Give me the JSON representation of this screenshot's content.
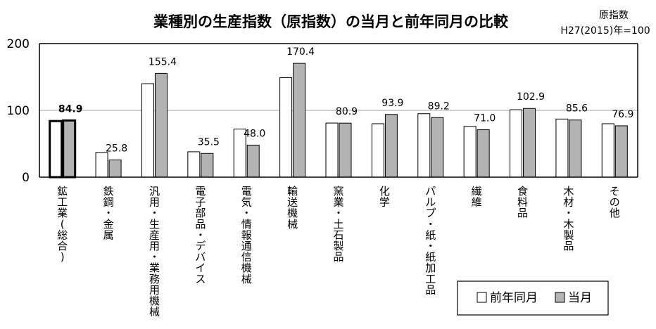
{
  "chart_data": {
    "type": "bar",
    "title": "業種別の生産指数（原指数）の当月と前年同月の比較",
    "note_line1": "原指数",
    "note_line2": "H27(2015)年=100",
    "ylim": [
      0,
      200
    ],
    "yticks": [
      0,
      100,
      200
    ],
    "grid": "horizontal",
    "legend_position": "bottom-right",
    "categories": [
      "鉱工業(総合)",
      "鉄鋼・金属",
      "汎用・生産用・業務用機械",
      "電子部品・デバイス",
      "電気・情報通信機械",
      "輸送機械",
      "窯業・土石製品",
      "化学",
      "パルプ・紙・紙加工品",
      "繊維",
      "食料品",
      "木材・木製品",
      "その他"
    ],
    "series": [
      {
        "name": "前年同月",
        "color": "#ffffff",
        "values": [
          84,
          37,
          140,
          38,
          72,
          149,
          81,
          80,
          95,
          76,
          101,
          87,
          80
        ]
      },
      {
        "name": "当月",
        "color": "#b3b3b3",
        "values": [
          84.9,
          25.8,
          155.4,
          35.5,
          48.0,
          170.4,
          80.9,
          93.9,
          89.2,
          71.0,
          102.9,
          85.6,
          76.9
        ]
      }
    ],
    "data_labels": [
      "84.9",
      "25.8",
      "155.4",
      "35.5",
      "48.0",
      "170.4",
      "80.9",
      "93.9",
      "89.2",
      "71.0",
      "102.9",
      "85.6",
      "76.9"
    ],
    "highlight_category_index": 0
  }
}
